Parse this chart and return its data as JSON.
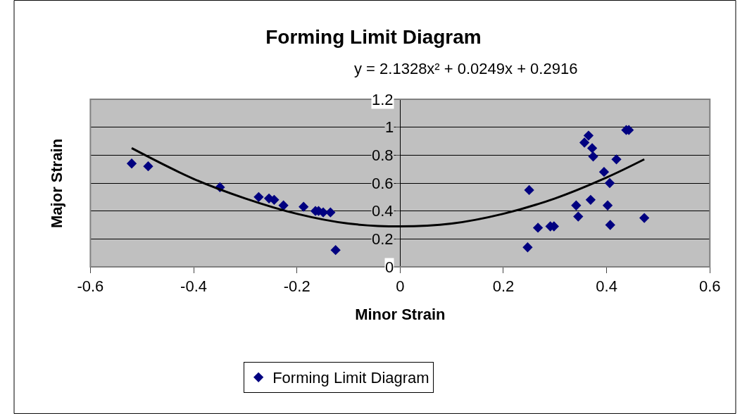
{
  "chart_data": {
    "type": "scatter",
    "title": "Forming Limit Diagram",
    "xlabel": "Minor Strain",
    "ylabel": "Major Strain",
    "annotations": [
      "y = 2.1328x² + 0.0249x + 0.2916"
    ],
    "xlim": [
      -0.6,
      0.6
    ],
    "xticks": [
      -0.6,
      -0.4,
      -0.2,
      0,
      0.2,
      0.4,
      0.6
    ],
    "ylim": [
      0,
      1.2
    ],
    "yticks": [
      0,
      0.2,
      0.4,
      0.6,
      0.8,
      1,
      1.2
    ],
    "grid": "y",
    "legend": "bottom",
    "marker": "diamond",
    "series": [
      {
        "name": "Forming Limit Diagram",
        "color": "#000080",
        "x": [
          -0.52,
          -0.488,
          -0.349,
          -0.274,
          -0.254,
          -0.244,
          -0.226,
          -0.187,
          -0.164,
          -0.158,
          -0.149,
          -0.135,
          -0.125,
          0.25,
          0.247,
          0.267,
          0.291,
          0.298,
          0.341,
          0.345,
          0.369,
          0.357,
          0.365,
          0.372,
          0.374,
          0.395,
          0.406,
          0.402,
          0.407,
          0.419,
          0.438,
          0.443,
          0.473
        ],
        "values": [
          0.74,
          0.72,
          0.57,
          0.5,
          0.49,
          0.48,
          0.44,
          0.43,
          0.4,
          0.4,
          0.39,
          0.39,
          0.12,
          0.55,
          0.14,
          0.28,
          0.29,
          0.29,
          0.44,
          0.36,
          0.48,
          0.89,
          0.94,
          0.85,
          0.79,
          0.68,
          0.6,
          0.44,
          0.3,
          0.77,
          0.98,
          0.98,
          0.35
        ]
      },
      {
        "color": "#000000",
        "type": "line",
        "marker": "none",
        "x": [
          -0.52,
          -0.4,
          -0.3,
          -0.2,
          -0.1,
          0,
          0.1,
          0.2,
          0.3,
          0.4,
          0.473
        ],
        "values": [
          0.85,
          0.63,
          0.49,
          0.38,
          0.31,
          0.29,
          0.31,
          0.38,
          0.49,
          0.64,
          0.77
        ]
      }
    ]
  }
}
